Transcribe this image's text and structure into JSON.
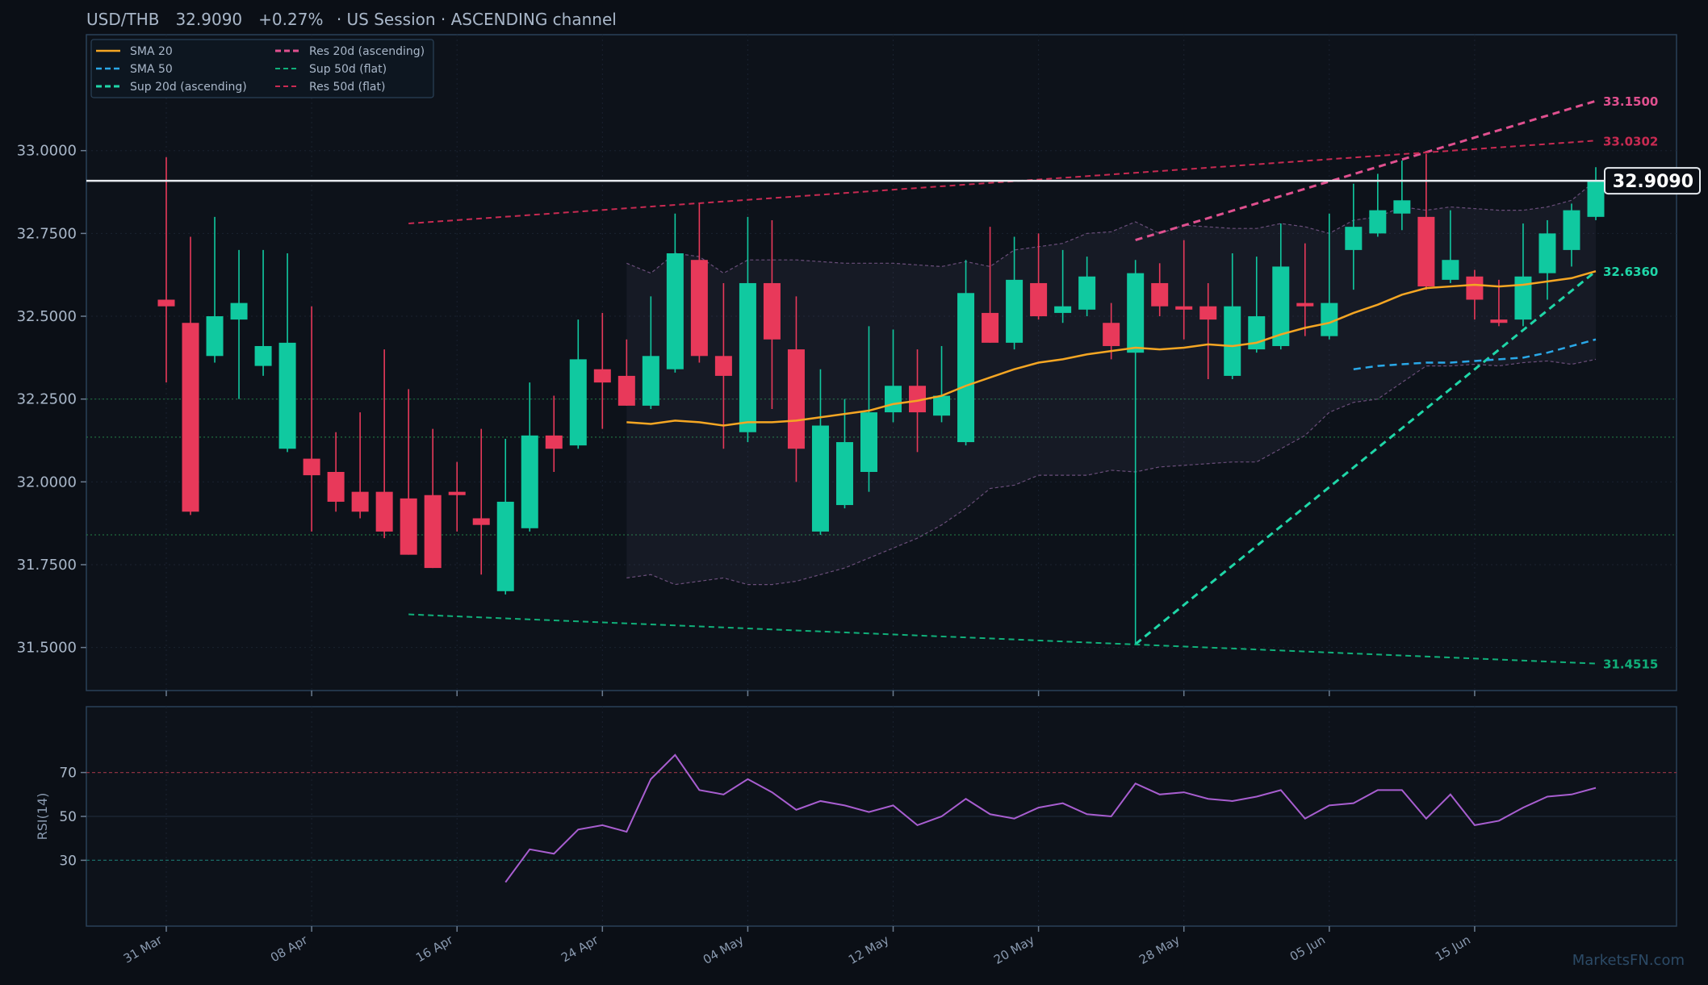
{
  "header": {
    "symbol": "USD/THB",
    "price": "32.9090",
    "change": "+0.27%",
    "session": "US Session",
    "channel": "ASCENDING channel"
  },
  "watermark": "MarketsFN.com",
  "colors": {
    "background": "#0b0f16",
    "up": "#10c9a0",
    "down": "#e8395a",
    "sma20": "#f5a623",
    "sma50": "#2aa8e8",
    "sup20": "#1fd6a8",
    "res20": "#e0508f",
    "sup50": "#10b07a",
    "res50": "#c82a52",
    "rsi": "#a85ed0"
  },
  "chart_data": [
    {
      "type": "candlestick",
      "title": "USD/THB",
      "ylim": [
        31.37,
        33.35
      ],
      "yticks": [
        "33.0000",
        "32.7500",
        "32.5000",
        "32.2500",
        "32.0000",
        "31.7500",
        "31.5000"
      ],
      "xticks": [
        "31 Mar",
        "08 Apr",
        "16 Apr",
        "24 Apr",
        "04 May",
        "12 May",
        "20 May",
        "28 May",
        "05 Jun",
        "15 Jun"
      ],
      "legend": {
        "placement": "top-left",
        "entries": [
          "SMA 20",
          "SMA 50",
          "Sup 20d (ascending)",
          "Res 20d (ascending)",
          "Sup 50d (flat)",
          "Res 50d (flat)"
        ]
      },
      "current_price": 32.909,
      "current_price_label": "32.9090",
      "level_labels": [
        "33.1500",
        "33.0302",
        "32.6360",
        "31.4515"
      ],
      "candles": [
        [
          32.55,
          32.98,
          32.3,
          32.53
        ],
        [
          32.48,
          32.74,
          31.9,
          31.91
        ],
        [
          32.38,
          32.8,
          32.36,
          32.5
        ],
        [
          32.49,
          32.7,
          32.25,
          32.54
        ],
        [
          32.35,
          32.7,
          32.32,
          32.41
        ],
        [
          32.1,
          32.69,
          32.09,
          32.42
        ],
        [
          32.07,
          32.53,
          31.85,
          32.02
        ],
        [
          32.03,
          32.15,
          31.91,
          31.94
        ],
        [
          31.97,
          32.21,
          31.89,
          31.91
        ],
        [
          31.97,
          32.4,
          31.83,
          31.85
        ],
        [
          31.95,
          32.28,
          31.78,
          31.78
        ],
        [
          31.96,
          32.16,
          31.74,
          31.74
        ],
        [
          31.97,
          32.06,
          31.85,
          31.96
        ],
        [
          31.89,
          32.16,
          31.72,
          31.87
        ],
        [
          31.67,
          32.13,
          31.66,
          31.94
        ],
        [
          31.86,
          32.3,
          31.85,
          32.14
        ],
        [
          32.14,
          32.26,
          32.03,
          32.1
        ],
        [
          32.11,
          32.49,
          32.1,
          32.37
        ],
        [
          32.34,
          32.51,
          32.16,
          32.3
        ],
        [
          32.32,
          32.43,
          32.23,
          32.23
        ],
        [
          32.23,
          32.56,
          32.22,
          32.38
        ],
        [
          32.34,
          32.81,
          32.33,
          32.69
        ],
        [
          32.67,
          32.84,
          32.36,
          32.38
        ],
        [
          32.38,
          32.6,
          32.1,
          32.32
        ],
        [
          32.15,
          32.8,
          32.12,
          32.6
        ],
        [
          32.6,
          32.79,
          32.22,
          32.43
        ],
        [
          32.4,
          32.56,
          32.0,
          32.1
        ],
        [
          31.85,
          32.34,
          31.84,
          32.17
        ],
        [
          31.93,
          32.25,
          31.92,
          32.12
        ],
        [
          32.03,
          32.47,
          31.97,
          32.21
        ],
        [
          32.21,
          32.46,
          32.18,
          32.29
        ],
        [
          32.29,
          32.4,
          32.09,
          32.21
        ],
        [
          32.2,
          32.41,
          32.18,
          32.26
        ],
        [
          32.12,
          32.67,
          32.11,
          32.57
        ],
        [
          32.51,
          32.77,
          32.42,
          32.42
        ],
        [
          32.42,
          32.74,
          32.4,
          32.61
        ],
        [
          32.6,
          32.75,
          32.49,
          32.5
        ],
        [
          32.51,
          32.7,
          32.48,
          32.53
        ],
        [
          32.52,
          32.68,
          32.5,
          32.62
        ],
        [
          32.48,
          32.54,
          32.37,
          32.41
        ],
        [
          32.39,
          32.67,
          31.51,
          32.63
        ],
        [
          32.6,
          32.66,
          32.5,
          32.53
        ],
        [
          32.53,
          32.73,
          32.43,
          32.52
        ],
        [
          32.53,
          32.6,
          32.31,
          32.49
        ],
        [
          32.32,
          32.69,
          32.31,
          32.53
        ],
        [
          32.4,
          32.68,
          32.39,
          32.5
        ],
        [
          32.41,
          32.78,
          32.4,
          32.65
        ],
        [
          32.54,
          32.72,
          32.44,
          32.53
        ],
        [
          32.44,
          32.81,
          32.43,
          32.54
        ],
        [
          32.7,
          32.9,
          32.58,
          32.77
        ],
        [
          32.75,
          32.93,
          32.74,
          32.82
        ],
        [
          32.81,
          32.97,
          32.76,
          32.85
        ],
        [
          32.8,
          32.99,
          32.58,
          32.59
        ],
        [
          32.61,
          32.82,
          32.6,
          32.67
        ],
        [
          32.62,
          32.64,
          32.49,
          32.55
        ],
        [
          32.49,
          32.61,
          32.47,
          32.48
        ],
        [
          32.49,
          32.78,
          32.47,
          32.62
        ],
        [
          32.63,
          32.79,
          32.55,
          32.75
        ],
        [
          32.7,
          32.84,
          32.65,
          32.82
        ],
        [
          32.8,
          32.95,
          32.79,
          32.91
        ]
      ],
      "series": [
        {
          "name": "SMA 20",
          "start_index": 19,
          "values": [
            32.18,
            32.175,
            32.185,
            32.18,
            32.17,
            32.18,
            32.18,
            32.185,
            32.195,
            32.205,
            32.215,
            32.235,
            32.245,
            32.26,
            32.29,
            32.315,
            32.34,
            32.36,
            32.37,
            32.385,
            32.395,
            32.405,
            32.4,
            32.405,
            32.415,
            32.41,
            32.42,
            32.445,
            32.465,
            32.48,
            32.51,
            32.535,
            32.565,
            32.585,
            32.59,
            32.595,
            32.59,
            32.595,
            32.605,
            32.615,
            32.636
          ]
        },
        {
          "name": "SMA 50",
          "start_index": 49,
          "values": [
            32.34,
            32.35,
            32.355,
            32.36,
            32.36,
            32.365,
            32.37,
            32.375,
            32.39,
            32.41,
            32.43
          ]
        },
        {
          "name": "Sup 20d (ascending)",
          "points": [
            [
              40,
              31.51
            ],
            [
              59,
              32.636
            ]
          ]
        },
        {
          "name": "Res 20d (ascending)",
          "points": [
            [
              40,
              32.73
            ],
            [
              59,
              33.15
            ]
          ]
        },
        {
          "name": "Sup 50d (flat)",
          "points": [
            [
              10,
              31.6
            ],
            [
              59,
              31.4515
            ]
          ]
        },
        {
          "name": "Res 50d (flat)",
          "points": [
            [
              10,
              32.78
            ],
            [
              59,
              33.0302
            ]
          ]
        }
      ],
      "bollinger": {
        "start_index": 19,
        "upper": [
          32.66,
          32.63,
          32.69,
          32.68,
          32.63,
          32.67,
          32.67,
          32.67,
          32.665,
          32.66,
          32.66,
          32.66,
          32.655,
          32.65,
          32.665,
          32.65,
          32.7,
          32.71,
          32.72,
          32.75,
          32.755,
          32.785,
          32.75,
          32.775,
          32.77,
          32.765,
          32.765,
          32.78,
          32.77,
          32.75,
          32.79,
          32.8,
          32.83,
          32.82,
          32.83,
          32.825,
          32.82,
          32.82,
          32.83,
          32.85,
          32.91
        ],
        "lower": [
          31.71,
          31.72,
          31.69,
          31.7,
          31.71,
          31.69,
          31.69,
          31.7,
          31.72,
          31.74,
          31.77,
          31.8,
          31.83,
          31.87,
          31.92,
          31.98,
          31.99,
          32.02,
          32.02,
          32.02,
          32.035,
          32.03,
          32.045,
          32.05,
          32.055,
          32.06,
          32.06,
          32.1,
          32.14,
          32.21,
          32.24,
          32.25,
          32.3,
          32.35,
          32.35,
          32.355,
          32.35,
          32.36,
          32.365,
          32.355,
          32.37
        ]
      },
      "reference_levels": [
        32.25,
        32.135,
        31.84
      ]
    },
    {
      "type": "line",
      "ylabel": "RSI(14)",
      "ylim": [
        0,
        100
      ],
      "yticks": [
        "70",
        "50",
        "30"
      ],
      "reference_levels": [
        70,
        50,
        30
      ],
      "series": [
        {
          "start_index": 14,
          "values": [
            20,
            35,
            33,
            44,
            46,
            43,
            67,
            78,
            62,
            60,
            67,
            61,
            53,
            57,
            55,
            52,
            55,
            46,
            50,
            58,
            51,
            49,
            54,
            56,
            51,
            50,
            65,
            60,
            61,
            58,
            57,
            59,
            62,
            49,
            55,
            56,
            62,
            62,
            49,
            60,
            46,
            48,
            54,
            59,
            60,
            63
          ]
        }
      ]
    }
  ]
}
